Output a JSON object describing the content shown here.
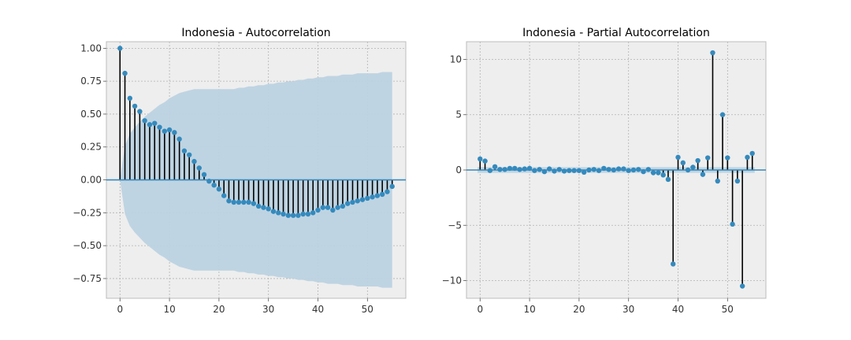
{
  "chart_data": [
    {
      "type": "stem",
      "title": "Indonesia - Autocorrelation",
      "xlabel": "",
      "ylabel": "",
      "xlim": [
        -2.75,
        57.75
      ],
      "ylim": [
        -0.9,
        1.05
      ],
      "xticks": [
        0,
        10,
        20,
        30,
        40,
        50
      ],
      "yticks": [
        -0.75,
        -0.5,
        -0.25,
        0.0,
        0.25,
        0.5,
        0.75,
        1.0
      ],
      "ytick_labels": [
        "−0.75",
        "−0.50",
        "−0.25",
        "0.00",
        "0.25",
        "0.50",
        "0.75",
        "1.00"
      ],
      "grid": true,
      "x": [
        0,
        1,
        2,
        3,
        4,
        5,
        6,
        7,
        8,
        9,
        10,
        11,
        12,
        13,
        14,
        15,
        16,
        17,
        18,
        19,
        20,
        21,
        22,
        23,
        24,
        25,
        26,
        27,
        28,
        29,
        30,
        31,
        32,
        33,
        34,
        35,
        36,
        37,
        38,
        39,
        40,
        41,
        42,
        43,
        44,
        45,
        46,
        47,
        48,
        49,
        50,
        51,
        52,
        53,
        54,
        55
      ],
      "values": [
        1.0,
        0.81,
        0.62,
        0.56,
        0.52,
        0.45,
        0.42,
        0.43,
        0.4,
        0.37,
        0.38,
        0.36,
        0.31,
        0.22,
        0.19,
        0.14,
        0.09,
        0.04,
        -0.01,
        -0.04,
        -0.07,
        -0.12,
        -0.16,
        -0.17,
        -0.17,
        -0.17,
        -0.17,
        -0.18,
        -0.2,
        -0.21,
        -0.22,
        -0.24,
        -0.25,
        -0.26,
        -0.27,
        -0.27,
        -0.27,
        -0.26,
        -0.26,
        -0.25,
        -0.23,
        -0.21,
        -0.21,
        -0.23,
        -0.21,
        -0.2,
        -0.18,
        -0.17,
        -0.16,
        -0.15,
        -0.14,
        -0.13,
        -0.12,
        -0.11,
        -0.09,
        -0.05
      ],
      "confint_upper": [
        0,
        0.26,
        0.35,
        0.4,
        0.44,
        0.48,
        0.51,
        0.54,
        0.57,
        0.59,
        0.62,
        0.64,
        0.66,
        0.67,
        0.68,
        0.69,
        0.69,
        0.69,
        0.69,
        0.69,
        0.69,
        0.69,
        0.69,
        0.69,
        0.7,
        0.7,
        0.71,
        0.71,
        0.72,
        0.72,
        0.73,
        0.73,
        0.74,
        0.74,
        0.75,
        0.75,
        0.76,
        0.76,
        0.77,
        0.77,
        0.78,
        0.78,
        0.79,
        0.79,
        0.79,
        0.8,
        0.8,
        0.8,
        0.81,
        0.81,
        0.81,
        0.81,
        0.81,
        0.82,
        0.82,
        0.82
      ],
      "colors": {
        "stem": "#000000",
        "marker": "#348ABD",
        "baseline": "#348ABD",
        "band": "#bcd2e0",
        "axes_bg": "#EEEEEE",
        "grid": "#B2B2B2"
      }
    },
    {
      "type": "stem",
      "title": "Indonesia - Partial Autocorrelation",
      "xlabel": "",
      "ylabel": "",
      "xlim": [
        -2.75,
        57.75
      ],
      "ylim": [
        -11.6,
        11.6
      ],
      "xticks": [
        0,
        10,
        20,
        30,
        40,
        50
      ],
      "yticks": [
        -10,
        -5,
        0,
        5,
        10
      ],
      "ytick_labels": [
        "−10",
        "−5",
        "0",
        "5",
        "10"
      ],
      "grid": true,
      "x": [
        0,
        1,
        2,
        3,
        4,
        5,
        6,
        7,
        8,
        9,
        10,
        11,
        12,
        13,
        14,
        15,
        16,
        17,
        18,
        19,
        20,
        21,
        22,
        23,
        24,
        25,
        26,
        27,
        28,
        29,
        30,
        31,
        32,
        33,
        34,
        35,
        36,
        37,
        38,
        39,
        40,
        41,
        42,
        43,
        44,
        45,
        46,
        47,
        48,
        49,
        50,
        51,
        52,
        53,
        54,
        55
      ],
      "values": [
        1.0,
        0.81,
        -0.05,
        0.3,
        0.05,
        0.05,
        0.15,
        0.15,
        0.05,
        0.1,
        0.15,
        -0.05,
        0.05,
        -0.15,
        0.1,
        -0.1,
        0.05,
        -0.1,
        -0.05,
        -0.05,
        -0.05,
        -0.2,
        0.0,
        0.05,
        -0.05,
        0.15,
        0.05,
        0.0,
        0.1,
        0.1,
        -0.05,
        0.0,
        0.05,
        -0.15,
        0.05,
        -0.25,
        -0.25,
        -0.45,
        -0.85,
        -8.5,
        1.15,
        0.65,
        0.0,
        0.25,
        0.85,
        -0.4,
        1.1,
        10.6,
        -1.0,
        5.0,
        1.1,
        -4.9,
        -1.0,
        -10.5,
        1.15,
        1.5
      ],
      "confint": [
        -0.26,
        0.26
      ],
      "colors": {
        "stem": "#000000",
        "marker": "#348ABD",
        "baseline": "#348ABD",
        "band": "#bcd2e0",
        "axes_bg": "#EEEEEE",
        "grid": "#B2B2B2"
      }
    }
  ]
}
